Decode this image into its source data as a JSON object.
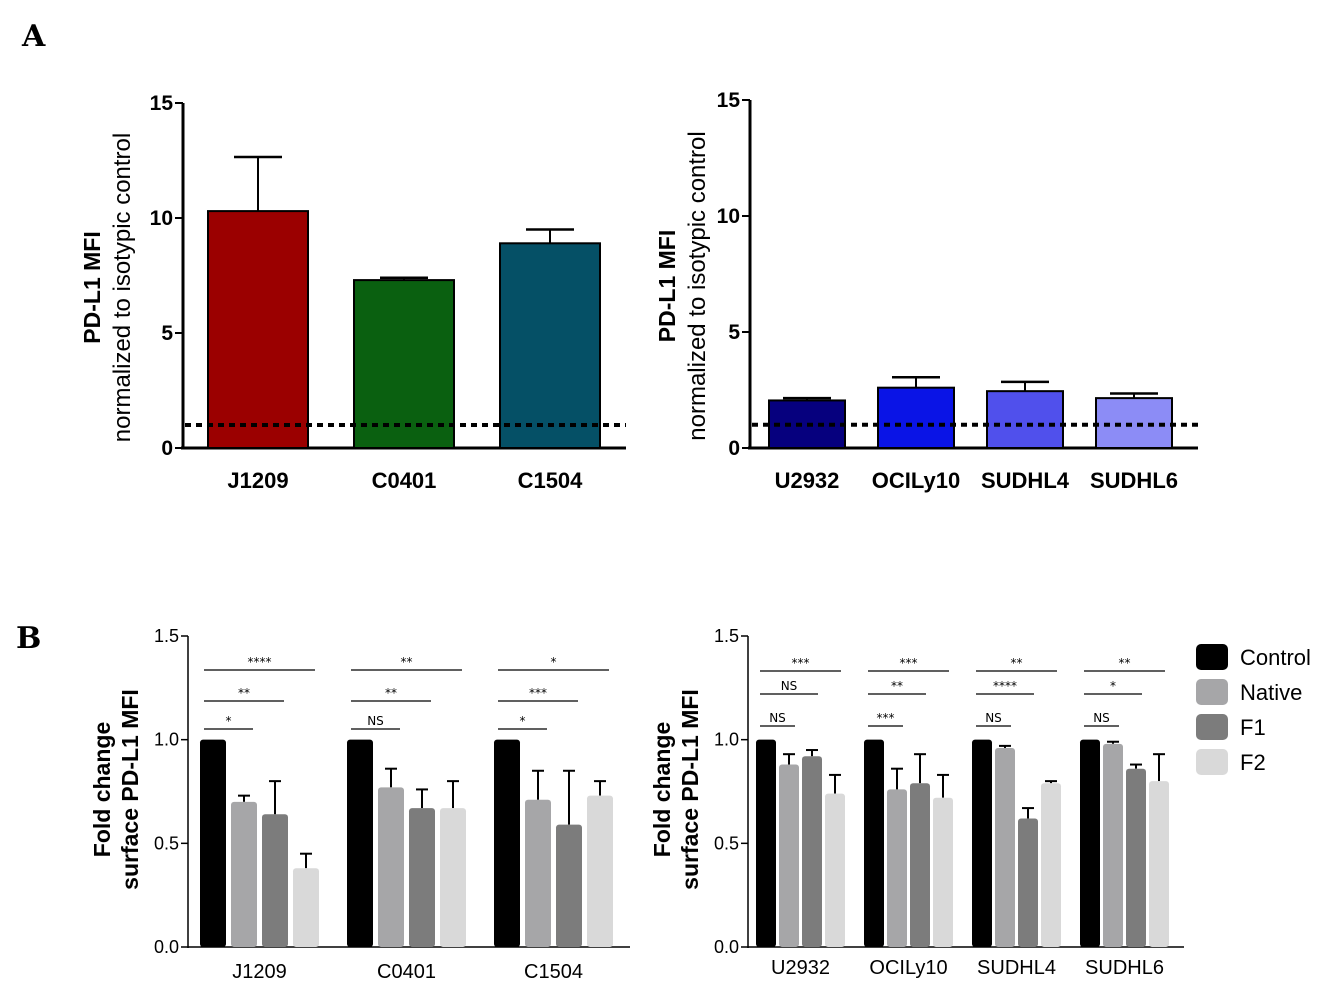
{
  "labels": {
    "panel_a": "A",
    "panel_b": "B"
  },
  "legend": {
    "items": [
      {
        "label": "Control",
        "color": "#000000"
      },
      {
        "label": "Native",
        "color": "#a6a6a8"
      },
      {
        "label": "F1",
        "color": "#7c7c7c"
      },
      {
        "label": "F2",
        "color": "#d9d9d9"
      }
    ]
  },
  "chart_data": [
    {
      "type": "bar",
      "ylabel": [
        "PD-L1 MFI",
        "normalized to isotypic control"
      ],
      "ylim": [
        0,
        15
      ],
      "yticks": [
        0,
        5,
        10,
        15
      ],
      "categories": [
        "J1209",
        "C0401",
        "C1504"
      ],
      "values": [
        10.3,
        7.3,
        8.9
      ],
      "errors": [
        2.35,
        0.1,
        0.6
      ],
      "colors": [
        "#9b0000",
        "#0a6010",
        "#055066"
      ],
      "reference_line": 1.0
    },
    {
      "type": "bar",
      "ylabel": [
        "PD-L1 MFI",
        "normalized to isotypic control"
      ],
      "ylim": [
        0,
        15
      ],
      "yticks": [
        0,
        5,
        10,
        15
      ],
      "categories": [
        "U2932",
        "OCILy10",
        "SUDHL4",
        "SUDHL6"
      ],
      "values": [
        2.05,
        2.6,
        2.45,
        2.15
      ],
      "errors": [
        0.1,
        0.45,
        0.4,
        0.2
      ],
      "colors": [
        "#06007e",
        "#0a14e6",
        "#5050ec",
        "#8c8cf6"
      ],
      "reference_line": 1.0
    },
    {
      "type": "bar",
      "ylabel": [
        "Fold change",
        "surface PD-L1 MFI"
      ],
      "ylim": [
        0,
        1.5
      ],
      "yticks": [
        "0.0",
        "0.5",
        "1.0",
        "1.5"
      ],
      "categories": [
        "J1209",
        "C0401",
        "C1504"
      ],
      "series": [
        {
          "name": "Control",
          "values": [
            1.0,
            1.0,
            1.0
          ],
          "errors": [
            0,
            0,
            0
          ]
        },
        {
          "name": "Native",
          "values": [
            0.7,
            0.77,
            0.71
          ],
          "errors": [
            0.03,
            0.09,
            0.14
          ]
        },
        {
          "name": "F1",
          "values": [
            0.64,
            0.67,
            0.59
          ],
          "errors": [
            0.16,
            0.09,
            0.26
          ]
        },
        {
          "name": "F2",
          "values": [
            0.38,
            0.67,
            0.73
          ],
          "errors": [
            0.07,
            0.13,
            0.07
          ]
        }
      ],
      "significance": [
        [
          {
            "label": "*",
            "to": 1,
            "tier": 1
          },
          {
            "label": "**",
            "to": 2,
            "tier": 2
          },
          {
            "label": "****",
            "to": 3,
            "tier": 3
          }
        ],
        [
          {
            "label": "NS",
            "to": 1,
            "tier": 1
          },
          {
            "label": "**",
            "to": 2,
            "tier": 2
          },
          {
            "label": "**",
            "to": 3,
            "tier": 3
          }
        ],
        [
          {
            "label": "*",
            "to": 1,
            "tier": 1
          },
          {
            "label": "***",
            "to": 2,
            "tier": 2
          },
          {
            "label": "*",
            "to": 3,
            "tier": 3
          }
        ]
      ]
    },
    {
      "type": "bar",
      "ylabel": [
        "Fold change",
        "surface PD-L1 MFI"
      ],
      "ylim": [
        0,
        1.5
      ],
      "yticks": [
        "0.0",
        "0.5",
        "1.0",
        "1.5"
      ],
      "categories": [
        "U2932",
        "OCILy10",
        "SUDHL4",
        "SUDHL6"
      ],
      "series": [
        {
          "name": "Control",
          "values": [
            1.0,
            1.0,
            1.0,
            1.0
          ],
          "errors": [
            0,
            0,
            0,
            0
          ]
        },
        {
          "name": "Native",
          "values": [
            0.88,
            0.76,
            0.96,
            0.98
          ],
          "errors": [
            0.05,
            0.1,
            0.01,
            0.01
          ]
        },
        {
          "name": "F1",
          "values": [
            0.92,
            0.79,
            0.62,
            0.86
          ],
          "errors": [
            0.03,
            0.14,
            0.05,
            0.02
          ]
        },
        {
          "name": "F2",
          "values": [
            0.74,
            0.72,
            0.79,
            0.8
          ],
          "errors": [
            0.09,
            0.11,
            0.01,
            0.13
          ]
        }
      ],
      "significance": [
        [
          {
            "label": "NS",
            "to": 1,
            "tier": 1
          },
          {
            "label": "NS",
            "to": 2,
            "tier": 2
          },
          {
            "label": "***",
            "to": 3,
            "tier": 3
          }
        ],
        [
          {
            "label": "***",
            "to": 1,
            "tier": 1
          },
          {
            "label": "**",
            "to": 2,
            "tier": 2
          },
          {
            "label": "***",
            "to": 3,
            "tier": 3
          }
        ],
        [
          {
            "label": "NS",
            "to": 1,
            "tier": 1
          },
          {
            "label": "****",
            "to": 2,
            "tier": 2
          },
          {
            "label": "**",
            "to": 3,
            "tier": 3
          }
        ],
        [
          {
            "label": "NS",
            "to": 1,
            "tier": 1
          },
          {
            "label": "*",
            "to": 2,
            "tier": 2
          },
          {
            "label": "**",
            "to": 3,
            "tier": 3
          }
        ]
      ]
    }
  ]
}
